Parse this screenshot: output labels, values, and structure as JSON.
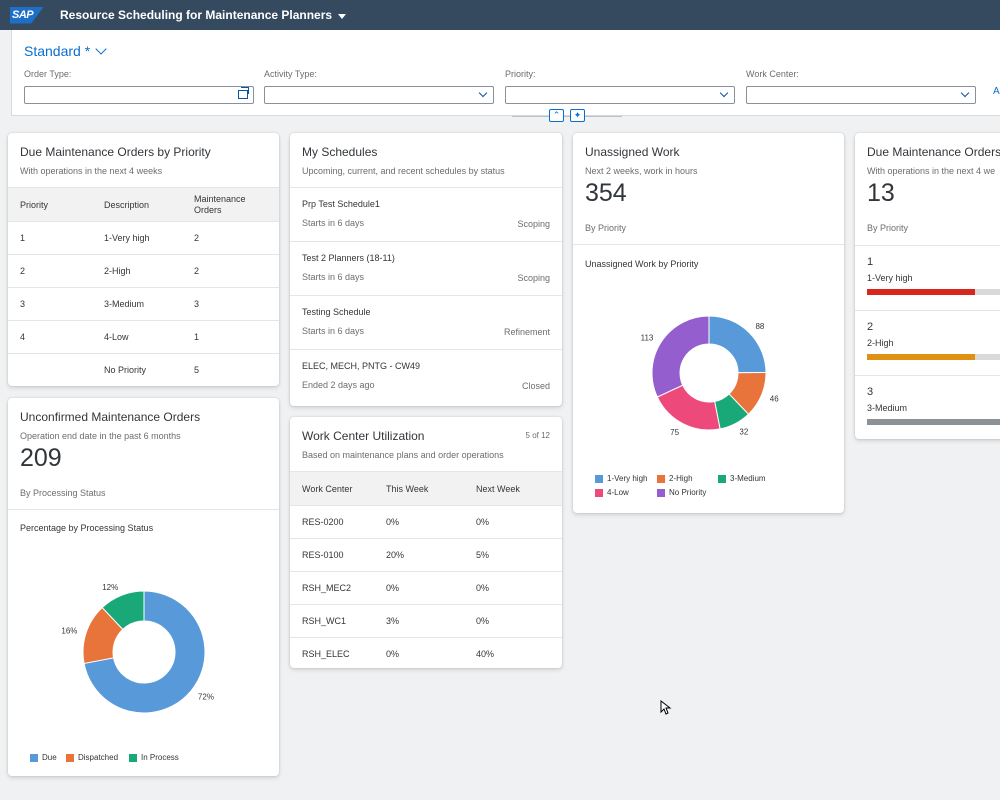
{
  "shell": {
    "logo": "SAP",
    "title": "Resource Scheduling for Maintenance Planners"
  },
  "filterbar": {
    "variant": "Standard *",
    "filters": [
      {
        "label": "Order Type:",
        "value": ""
      },
      {
        "label": "Activity Type:",
        "value": ""
      },
      {
        "label": "Priority:",
        "value": ""
      },
      {
        "label": "Work Center:",
        "value": ""
      }
    ],
    "adapt": "Ad"
  },
  "cards": {
    "due_priority": {
      "title": "Due Maintenance Orders by Priority",
      "subtitle": "With operations in the next 4 weeks",
      "headers": [
        "Priority",
        "Description",
        "Maintenance Orders"
      ],
      "rows": [
        [
          "1",
          "1-Very high",
          "2"
        ],
        [
          "2",
          "2-High",
          "2"
        ],
        [
          "3",
          "3-Medium",
          "3"
        ],
        [
          "4",
          "4-Low",
          "1"
        ],
        [
          "",
          "No Priority",
          "5"
        ]
      ]
    },
    "unconfirmed": {
      "title": "Unconfirmed Maintenance Orders",
      "subtitle": "Operation end date in the past 6 months",
      "kpi": "209",
      "by": "By Processing Status",
      "chart_title": "Percentage by Processing Status",
      "legend": [
        "Due",
        "Dispatched",
        "In Process"
      ]
    },
    "schedules": {
      "title": "My Schedules",
      "subtitle": "Upcoming, current, and recent schedules by status",
      "items": [
        {
          "name": "Prp Test Schedule1",
          "date": "Starts in 6 days",
          "status": "Scoping"
        },
        {
          "name": "Test 2 Planners (18-11)",
          "date": "Starts in 6 days",
          "status": "Scoping"
        },
        {
          "name": "Testing Schedule",
          "date": "Starts in 6 days",
          "status": "Refinement"
        },
        {
          "name": "ELEC, MECH, PNTG - CW49",
          "date": "Ended 2 days ago",
          "status": "Closed"
        }
      ]
    },
    "wc_util": {
      "title": "Work Center Utilization",
      "subtitle": "Based on maintenance plans and order operations",
      "page": "5 of 12",
      "headers": [
        "Work Center",
        "This Week",
        "Next Week"
      ],
      "rows": [
        [
          "RES-0200",
          "0%",
          "0%"
        ],
        [
          "RES-0100",
          "20%",
          "5%"
        ],
        [
          "RSH_MEC2",
          "0%",
          "0%"
        ],
        [
          "RSH_WC1",
          "3%",
          "0%"
        ],
        [
          "RSH_ELEC",
          "0%",
          "40%"
        ]
      ]
    },
    "unassigned": {
      "title": "Unassigned Work",
      "subtitle": "Next 2 weeks, work in hours",
      "kpi": "354",
      "by": "By Priority",
      "chart_title": "Unassigned Work by Priority",
      "legend": [
        "1-Very high",
        "2-High",
        "3-Medium",
        "4-Low",
        "No Priority"
      ]
    },
    "due_orders": {
      "title": "Due Maintenance Orders",
      "subtitle": "With operations in the next 4 we",
      "kpi": "13",
      "by": "By Priority",
      "bars": [
        {
          "num": "1",
          "label": "1-Very high",
          "fraction": 0.77,
          "color": "#d9261c"
        },
        {
          "num": "2",
          "label": "2-High",
          "fraction": 0.77,
          "color": "#e09012"
        },
        {
          "num": "3",
          "label": "3-Medium",
          "fraction": 1.0,
          "color": "#8c9196"
        }
      ]
    }
  },
  "chart_data": [
    {
      "type": "pie",
      "title": "Percentage by Processing Status",
      "categories": [
        "Due",
        "Dispatched",
        "In Process"
      ],
      "values": [
        72,
        16,
        12
      ],
      "labels": [
        "72%",
        "16%",
        "12%"
      ],
      "colors": [
        "#5899da",
        "#e8743b",
        "#19a979"
      ]
    },
    {
      "type": "pie",
      "title": "Unassigned Work by Priority",
      "categories": [
        "1-Very high",
        "2-High",
        "3-Medium",
        "4-Low",
        "No Priority"
      ],
      "values": [
        88,
        46,
        32,
        75,
        113
      ],
      "labels": [
        "88",
        "46",
        "32",
        "75",
        "113"
      ],
      "colors": [
        "#5899da",
        "#e8743b",
        "#19a979",
        "#ed4a7b",
        "#945ecf"
      ]
    }
  ]
}
